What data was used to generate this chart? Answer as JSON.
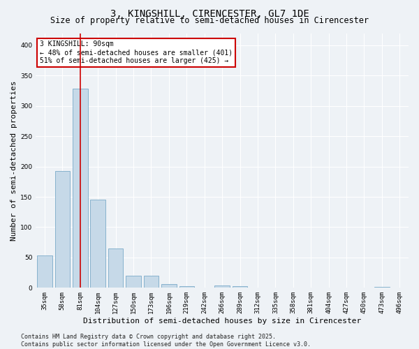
{
  "title": "3, KINGSHILL, CIRENCESTER, GL7 1DE",
  "subtitle": "Size of property relative to semi-detached houses in Cirencester",
  "xlabel": "Distribution of semi-detached houses by size in Cirencester",
  "ylabel": "Number of semi-detached properties",
  "categories": [
    "35sqm",
    "58sqm",
    "81sqm",
    "104sqm",
    "127sqm",
    "150sqm",
    "173sqm",
    "196sqm",
    "219sqm",
    "242sqm",
    "266sqm",
    "289sqm",
    "312sqm",
    "335sqm",
    "358sqm",
    "381sqm",
    "404sqm",
    "427sqm",
    "450sqm",
    "473sqm",
    "496sqm"
  ],
  "values": [
    53,
    193,
    328,
    145,
    65,
    20,
    20,
    6,
    3,
    0,
    4,
    3,
    0,
    0,
    0,
    0,
    0,
    0,
    0,
    2,
    0
  ],
  "bar_color": "#c6d9e8",
  "bar_edge_color": "#7aaac8",
  "highlight_bar_index": 2,
  "highlight_line_color": "#cc0000",
  "annotation_text": "3 KINGSHILL: 90sqm\n← 48% of semi-detached houses are smaller (401)\n51% of semi-detached houses are larger (425) →",
  "annotation_box_color": "#ffffff",
  "annotation_box_edge_color": "#cc0000",
  "ylim": [
    0,
    420
  ],
  "yticks": [
    0,
    50,
    100,
    150,
    200,
    250,
    300,
    350,
    400
  ],
  "footer_text": "Contains HM Land Registry data © Crown copyright and database right 2025.\nContains public sector information licensed under the Open Government Licence v3.0.",
  "background_color": "#eef2f6",
  "grid_color": "#ffffff",
  "title_fontsize": 10,
  "subtitle_fontsize": 8.5,
  "tick_fontsize": 6.5,
  "label_fontsize": 8,
  "footer_fontsize": 6,
  "annotation_fontsize": 7
}
